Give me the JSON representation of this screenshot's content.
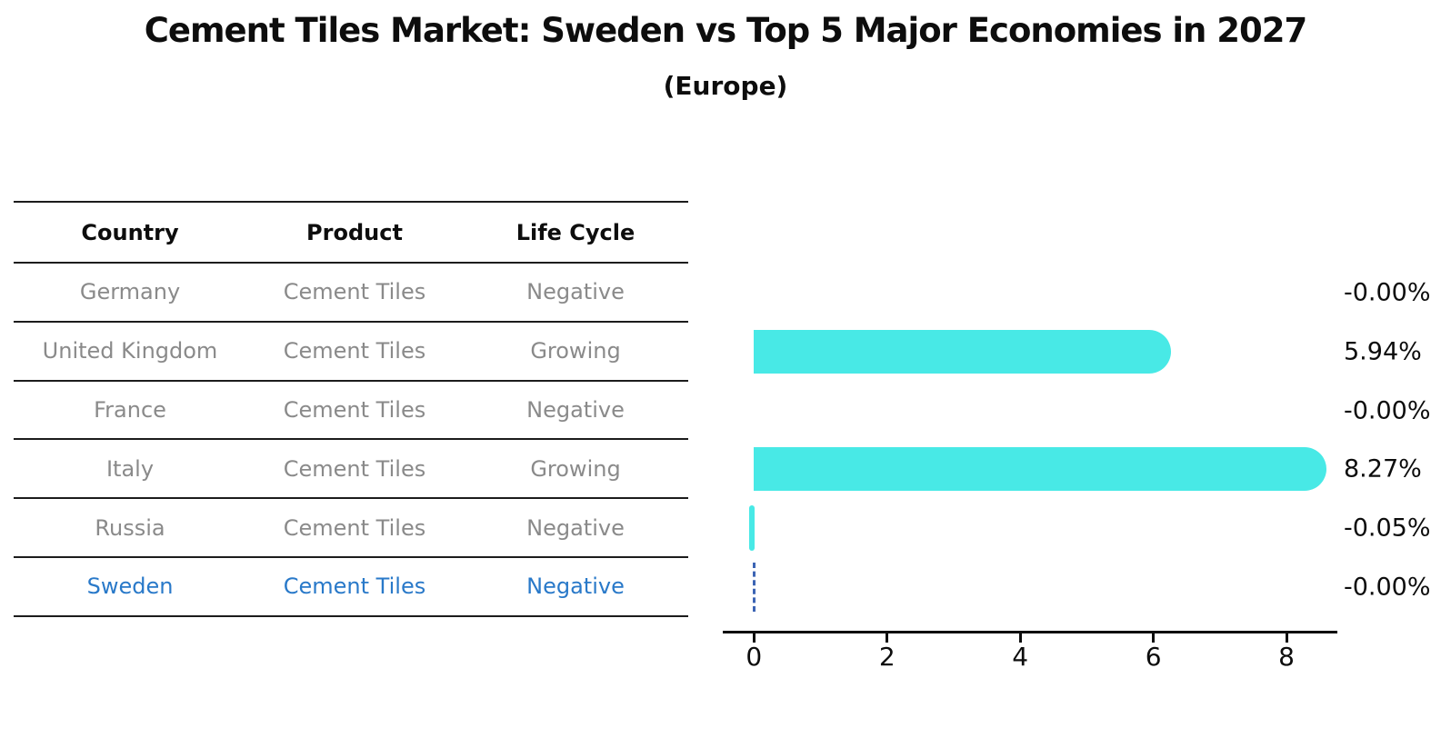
{
  "title": "Cement Tiles Market: Sweden vs Top 5 Major Economies in 2027",
  "subtitle": "(Europe)",
  "table": {
    "headers": [
      "Country",
      "Product",
      "Life Cycle"
    ],
    "rows": [
      {
        "country": "Germany",
        "product": "Cement Tiles",
        "life_cycle": "Negative",
        "highlight": false
      },
      {
        "country": "United Kingdom",
        "product": "Cement Tiles",
        "life_cycle": "Growing",
        "highlight": false
      },
      {
        "country": "France",
        "product": "Cement Tiles",
        "life_cycle": "Negative",
        "highlight": false
      },
      {
        "country": "Italy",
        "product": "Cement Tiles",
        "life_cycle": "Growing",
        "highlight": false
      },
      {
        "country": "Russia",
        "product": "Cement Tiles",
        "life_cycle": "Negative",
        "highlight": false
      },
      {
        "country": "Sweden",
        "product": "Cement Tiles",
        "life_cycle": "Negative",
        "highlight": true
      }
    ]
  },
  "chart_data": {
    "type": "bar",
    "orientation": "horizontal",
    "title": "Cement Tiles Market: Sweden vs Top 5 Major Economies in 2027",
    "subtitle": "(Europe)",
    "categories": [
      "Germany",
      "United Kingdom",
      "France",
      "Italy",
      "Russia",
      "Sweden"
    ],
    "values": [
      -0.0,
      5.94,
      -0.0,
      8.27,
      -0.05,
      -0.0
    ],
    "value_labels": [
      "-0.00%",
      "5.94%",
      "-0.00%",
      "8.27%",
      "-0.05%",
      "-0.00%"
    ],
    "xlabel": "",
    "ylabel": "",
    "xlim": [
      -0.4,
      8.75
    ],
    "xticks": [
      0,
      2,
      4,
      6,
      8
    ],
    "grid": false,
    "legend": false,
    "bar_color": "#48e9e6",
    "highlight_text_color": "#2979c9",
    "highlight_marker_color": "#3c64b4"
  }
}
